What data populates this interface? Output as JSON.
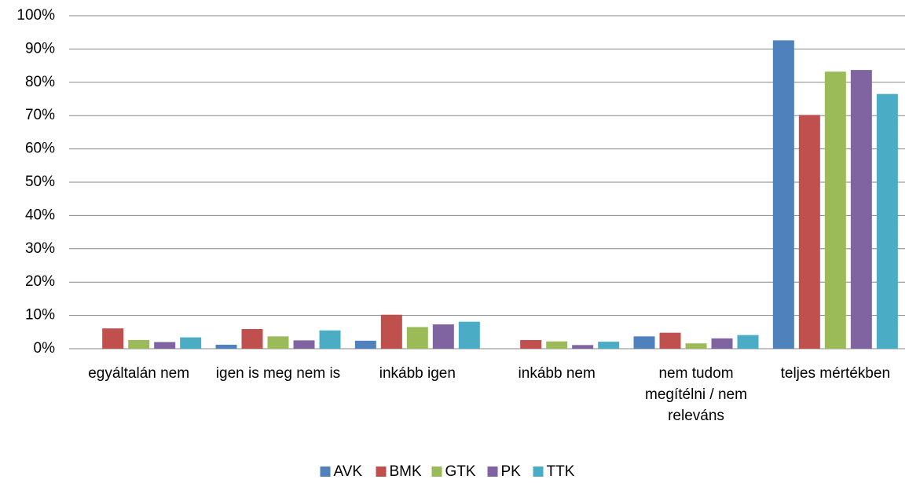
{
  "chart_data": {
    "type": "bar",
    "categories": [
      "egyáltalán nem",
      "igen is meg nem is",
      "inkább igen",
      "inkább nem",
      "nem tudom megítélni / nem releváns",
      "teljes mértékben"
    ],
    "series": [
      {
        "name": "AVK",
        "color": "#4f81bd",
        "values": [
          0,
          1.2,
          2.4,
          0,
          3.7,
          92.6
        ]
      },
      {
        "name": "BMK",
        "color": "#c0504d",
        "values": [
          6.1,
          5.9,
          10.2,
          2.6,
          4.8,
          70.2
        ]
      },
      {
        "name": "GTK",
        "color": "#9bbb59",
        "values": [
          2.6,
          3.7,
          6.5,
          2.2,
          1.6,
          83.2
        ]
      },
      {
        "name": "PK",
        "color": "#8064a2",
        "values": [
          2.0,
          2.5,
          7.3,
          1.1,
          3.1,
          83.7
        ]
      },
      {
        "name": "TTK",
        "color": "#4bacc6",
        "values": [
          3.4,
          5.5,
          8.1,
          2.1,
          4.1,
          76.5
        ]
      }
    ],
    "ylim": [
      0,
      100
    ],
    "yticks": [
      {
        "value": 0,
        "label": "0%"
      },
      {
        "value": 10,
        "label": "10%"
      },
      {
        "value": 20,
        "label": "20%"
      },
      {
        "value": 30,
        "label": "30%"
      },
      {
        "value": 40,
        "label": "40%"
      },
      {
        "value": 50,
        "label": "50%"
      },
      {
        "value": 60,
        "label": "60%"
      },
      {
        "value": 70,
        "label": "70%"
      },
      {
        "value": 80,
        "label": "80%"
      },
      {
        "value": 90,
        "label": "90%"
      },
      {
        "value": 100,
        "label": "100%"
      }
    ],
    "grid": true,
    "legend": "bottom"
  }
}
